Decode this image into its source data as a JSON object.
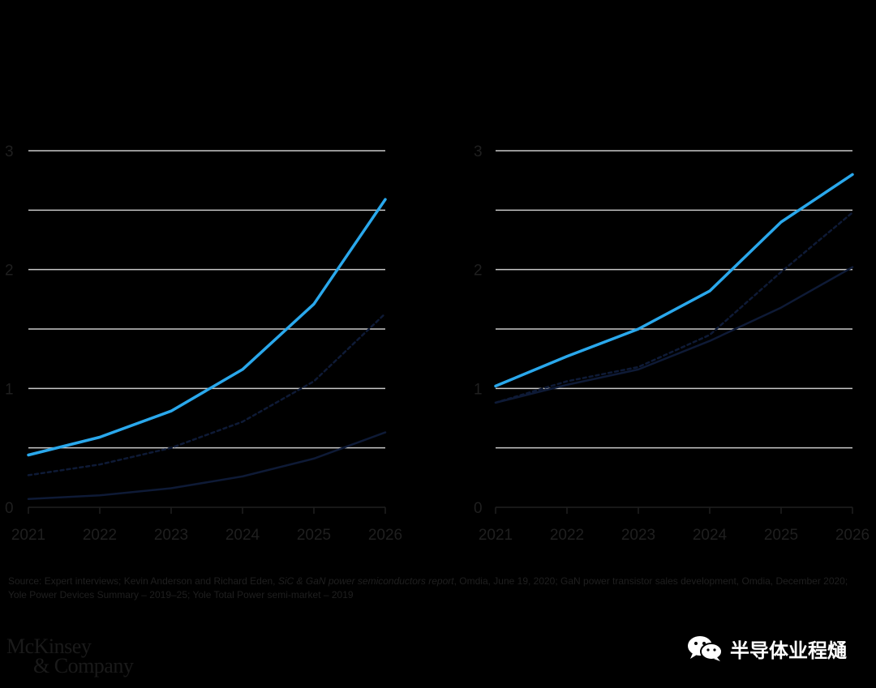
{
  "chart_data": [
    {
      "type": "line",
      "x": [
        2021,
        2022,
        2023,
        2024,
        2025,
        2026
      ],
      "ylim": [
        0,
        3
      ],
      "yticks": [
        0,
        1,
        2,
        3
      ],
      "gridlines": [
        0.5,
        1,
        1.5,
        2,
        2.5,
        3
      ],
      "grid": true,
      "xtick_labels": [
        "2021",
        "2022",
        "2023",
        "2024",
        "2025",
        "2026"
      ],
      "ytick_labels": [
        "0",
        "1",
        "2",
        "3"
      ],
      "series": [
        {
          "style": "solid",
          "color": "#2aa8ec",
          "values": [
            0.44,
            0.59,
            0.81,
            1.16,
            1.71,
            2.59
          ]
        },
        {
          "style": "dashed",
          "color": "#0e1a36",
          "values": [
            0.27,
            0.36,
            0.5,
            0.72,
            1.06,
            1.63
          ]
        },
        {
          "style": "solid",
          "color": "#0e1a36",
          "values": [
            0.07,
            0.1,
            0.16,
            0.26,
            0.41,
            0.63
          ]
        }
      ]
    },
    {
      "type": "line",
      "x": [
        2021,
        2022,
        2023,
        2024,
        2025,
        2026
      ],
      "ylim": [
        0,
        3
      ],
      "yticks": [
        0,
        1,
        2,
        3
      ],
      "gridlines": [
        0.5,
        1,
        1.5,
        2,
        2.5,
        3
      ],
      "grid": true,
      "xtick_labels": [
        "2021",
        "2022",
        "2023",
        "2024",
        "2025",
        "2026"
      ],
      "ytick_labels": [
        "0",
        "1",
        "2",
        "3"
      ],
      "series": [
        {
          "style": "solid",
          "color": "#2aa8ec",
          "values": [
            1.02,
            1.27,
            1.5,
            1.82,
            2.4,
            2.8
          ]
        },
        {
          "style": "dashed",
          "color": "#0e1a36",
          "values": [
            0.88,
            1.06,
            1.18,
            1.45,
            1.98,
            2.48
          ]
        },
        {
          "style": "solid",
          "color": "#0e1a36",
          "values": [
            0.88,
            1.03,
            1.16,
            1.4,
            1.68,
            2.02
          ]
        }
      ]
    }
  ],
  "source": {
    "prefix": "Source: Expert interviews; Kevin Anderson and Richard Eden, ",
    "report_title": "SiC & GaN power semiconductors report",
    "suffix": ", Omdia, June 19, 2020; GaN power transistor sales development, Omdia, December 2020; Yole Power Devices Summary – 2019–25; Yole Total Power semi-market – 2019"
  },
  "brand": {
    "line1": "McKinsey",
    "line2": "& Company"
  },
  "watermark": {
    "text": "半导体业程熥",
    "icon": "wechat-icon"
  }
}
